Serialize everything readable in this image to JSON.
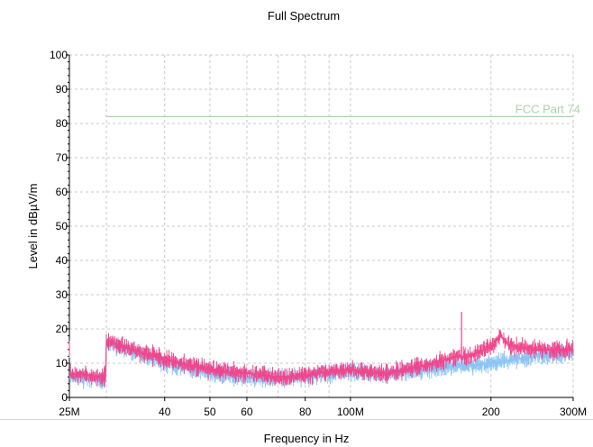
{
  "chart_data": {
    "type": "line",
    "title": "Full Spectrum",
    "xlabel": "Frequency in Hz",
    "ylabel": "Level in dBµV/m",
    "x_scale": "log",
    "xlim": [
      25000000,
      300000000
    ],
    "ylim": [
      0,
      100
    ],
    "grid": true,
    "x_ticks": [
      {
        "value": 25000000,
        "label": "25M"
      },
      {
        "value": 40000000,
        "label": "40"
      },
      {
        "value": 50000000,
        "label": "50"
      },
      {
        "value": 60000000,
        "label": "60"
      },
      {
        "value": 80000000,
        "label": "80"
      },
      {
        "value": 100000000,
        "label": "100M"
      },
      {
        "value": 200000000,
        "label": "200"
      },
      {
        "value": 300000000,
        "label": "300M"
      }
    ],
    "y_ticks": [
      0,
      10,
      20,
      30,
      40,
      50,
      60,
      70,
      80,
      90,
      100
    ],
    "limit_line": {
      "label": "FCC Part 74",
      "value": 82,
      "x_start": 30000000,
      "x_end": 300000000,
      "color": "#a8d4a8"
    },
    "series": [
      {
        "color": "#8cc4f4",
        "x": [
          25000000,
          29900000,
          30000000,
          35000000,
          40000000,
          50000000,
          60000000,
          70000000,
          80000000,
          90000000,
          100000000,
          120000000,
          140000000,
          160000000,
          180000000,
          200000000,
          220000000,
          250000000,
          300000000
        ],
        "y": [
          6,
          5,
          16,
          13,
          10,
          7,
          6,
          5.5,
          6,
          7,
          7.5,
          6.5,
          8,
          9,
          9.5,
          10,
          11,
          12,
          13
        ]
      },
      {
        "color": "#f0468c",
        "x": [
          25000000,
          29900000,
          30000000,
          35000000,
          40000000,
          50000000,
          60000000,
          70000000,
          80000000,
          90000000,
          100000000,
          120000000,
          140000000,
          160000000,
          170000000,
          180000000,
          200000000,
          210000000,
          220000000,
          250000000,
          300000000
        ],
        "y": [
          7,
          6,
          16.5,
          13.5,
          11,
          8,
          7,
          6,
          6.5,
          7.5,
          8,
          7,
          9,
          11,
          12,
          12,
          15,
          18,
          15,
          14,
          14
        ],
        "spike": {
          "x": 173000000,
          "y": 25
        }
      }
    ]
  }
}
